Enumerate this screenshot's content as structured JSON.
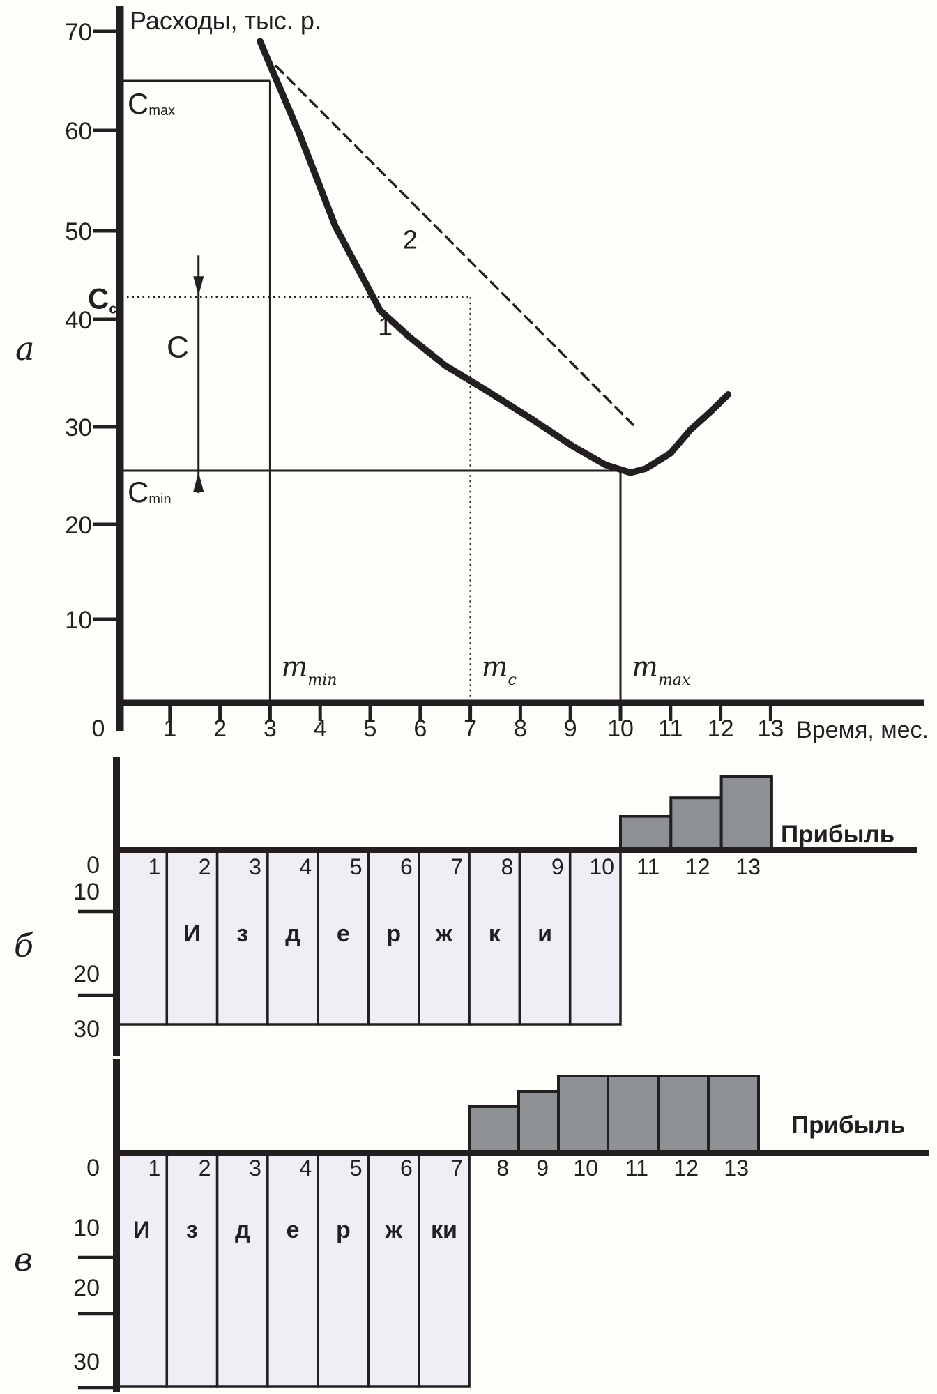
{
  "page": {
    "background": "#fdfdfa",
    "ink": "#231f20",
    "cost_fill": "#efeef4",
    "profit_fill": "#8e9194"
  },
  "chart_data": [
    {
      "panel_tag": "а",
      "type": "line",
      "title": "Расходы, тыс. р.",
      "xlabel": "Время, мес.",
      "origin_label": "0",
      "x_ticks": [
        1,
        2,
        3,
        4,
        5,
        6,
        7,
        8,
        9,
        10,
        11,
        12,
        13
      ],
      "y_ticks": [
        10,
        20,
        30,
        40,
        50,
        60,
        70
      ],
      "xlim": [
        0,
        14
      ],
      "ylim": [
        0,
        72
      ],
      "grid": false,
      "series": [
        {
          "name": "1",
          "style": "solid-thick",
          "points": [
            [
              2.8,
              69
            ],
            [
              3.05,
              66
            ],
            [
              3.6,
              59.5
            ],
            [
              4.3,
              50.5
            ],
            [
              5.2,
              41
            ],
            [
              5.8,
              38.3
            ],
            [
              6.5,
              35.7
            ],
            [
              7.35,
              33.3
            ],
            [
              8.2,
              30.8
            ],
            [
              9.05,
              28
            ],
            [
              9.7,
              26.1
            ],
            [
              10.2,
              25.3
            ],
            [
              10.5,
              25.7
            ],
            [
              11.0,
              27.3
            ],
            [
              11.4,
              29.7
            ],
            [
              11.8,
              31.4
            ],
            [
              12.15,
              33
            ]
          ]
        },
        {
          "name": "2",
          "style": "dashed",
          "points": [
            [
              3.12,
              66.5
            ],
            [
              10.25,
              30.2
            ]
          ]
        }
      ],
      "curve_labels": [
        {
          "text": "1",
          "x": 5.3,
          "y": 38.5
        },
        {
          "text": "2",
          "x": 5.8,
          "y": 48
        }
      ],
      "h_lines": [
        {
          "main": "C",
          "sub": "max",
          "value": 65,
          "to_month": 3,
          "style": "solid",
          "bold": false
        },
        {
          "main": "С",
          "sub": "с",
          "value": 42.5,
          "to_month": 7,
          "style": "dotted",
          "bold": true
        },
        {
          "main": "C",
          "sub": "min",
          "value": 25.5,
          "to_month": 10,
          "style": "solid",
          "bold": false
        }
      ],
      "v_lines": [
        {
          "main": "m",
          "sub": "min",
          "month": 3,
          "from_value": 65,
          "style": "solid"
        },
        {
          "main": "m",
          "sub": "c",
          "month": 7,
          "from_value": 42.5,
          "style": "dotted"
        },
        {
          "main": "m",
          "sub": "max",
          "month": 10,
          "from_value": 25.5,
          "style": "solid"
        }
      ],
      "dimension": {
        "label": "С",
        "month": 1.57,
        "from_value": 42.5,
        "to_value": 25.5
      }
    },
    {
      "panel_tag": "б",
      "type": "bar",
      "y_tick_labels": [
        0,
        10,
        20,
        30
      ],
      "cost": {
        "word": "Издержки",
        "months": [
          1,
          2,
          3,
          4,
          5,
          6,
          7,
          8,
          9,
          10
        ],
        "depth": 29,
        "letters": [
          {
            "month": 2,
            "ch": "И"
          },
          {
            "month": 3,
            "ch": "з"
          },
          {
            "month": 4,
            "ch": "д"
          },
          {
            "month": 5,
            "ch": "е"
          },
          {
            "month": 6,
            "ch": "р"
          },
          {
            "month": 7,
            "ch": "ж"
          },
          {
            "month": 8,
            "ch": "к"
          },
          {
            "month": 9,
            "ch": "и"
          }
        ]
      },
      "profit": {
        "label": "Прибыль",
        "months": [
          11,
          12,
          13
        ],
        "values": [
          5.5,
          8.5,
          12
        ]
      }
    },
    {
      "panel_tag": "в",
      "type": "bar",
      "y_tick_labels": [
        0,
        10,
        20,
        30
      ],
      "cost": {
        "word": "Издержки",
        "months": [
          1,
          2,
          3,
          4,
          5,
          6,
          7
        ],
        "depth": 35,
        "letters": [
          {
            "month": 1,
            "ch": "И"
          },
          {
            "month": 2,
            "ch": "з"
          },
          {
            "month": 3,
            "ch": "д"
          },
          {
            "month": 4,
            "ch": "е"
          },
          {
            "month": 5,
            "ch": "р"
          },
          {
            "month": 6,
            "ch": "ж"
          },
          {
            "month": 7,
            "ch": "ки"
          }
        ]
      },
      "profit": {
        "label": "Прибыль",
        "months": [
          8,
          9,
          10,
          11,
          12,
          13
        ],
        "values": [
          7.5,
          10,
          12.5,
          12.5,
          12.5,
          12.5
        ]
      }
    }
  ]
}
